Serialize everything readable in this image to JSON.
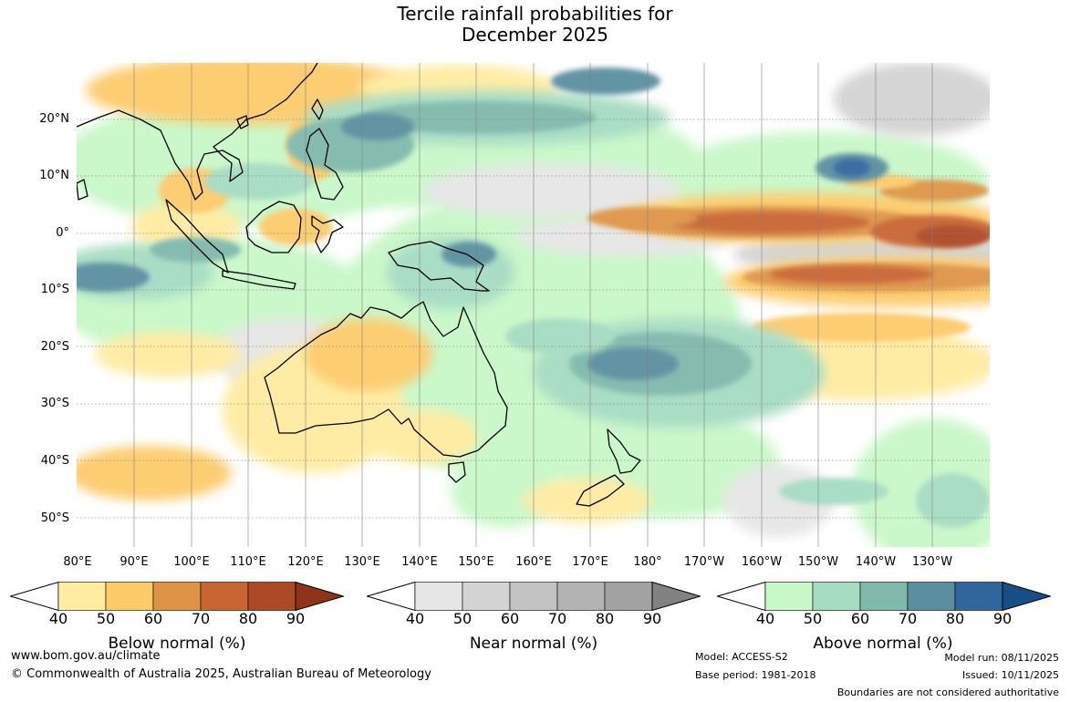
{
  "title": {
    "line1": "Tercile rainfall probabilities for",
    "line2": "December 2025"
  },
  "map": {
    "lat_labels": [
      "20°N",
      "10°N",
      "0°",
      "10°S",
      "20°S",
      "30°S",
      "40°S",
      "50°S"
    ],
    "lon_labels": [
      "80°E",
      "90°E",
      "100°E",
      "110°E",
      "120°E",
      "130°E",
      "140°E",
      "150°E",
      "160°E",
      "170°E",
      "180°",
      "170°W",
      "160°W",
      "150°W",
      "140°W",
      "130°W"
    ]
  },
  "legends": [
    {
      "title": "Below normal (%)",
      "ticks": [
        "40",
        "50",
        "60",
        "70",
        "80",
        "90"
      ],
      "colors": [
        "#ffeca0",
        "#fdcb6a",
        "#de9447",
        "#c96532",
        "#ac4a26",
        "#8f3418"
      ]
    },
    {
      "title": "Near normal (%)",
      "ticks": [
        "40",
        "50",
        "60",
        "70",
        "80",
        "90"
      ],
      "colors": [
        "#e6e6e6",
        "#d3d3d3",
        "#c3c3c3",
        "#b3b3b3",
        "#a3a3a3",
        "#828282"
      ]
    },
    {
      "title": "Above normal (%)",
      "ticks": [
        "40",
        "50",
        "60",
        "70",
        "80",
        "90"
      ],
      "colors": [
        "#c8f8c8",
        "#a6dcc2",
        "#80b9ac",
        "#5a8fa0",
        "#31669c",
        "#164f86"
      ]
    }
  ],
  "footer": {
    "website": "www.bom.gov.au/climate",
    "copyright": "© Commonwealth of Australia 2025, Australian Bureau of Meteorology",
    "model": "Model: ACCESS-S2",
    "base_period": "Base period: 1981-2018",
    "model_run": "Model run: 08/11/2025",
    "issued": "Issued: 10/11/2025",
    "disclaimer": "Boundaries are not considered authoritative"
  }
}
